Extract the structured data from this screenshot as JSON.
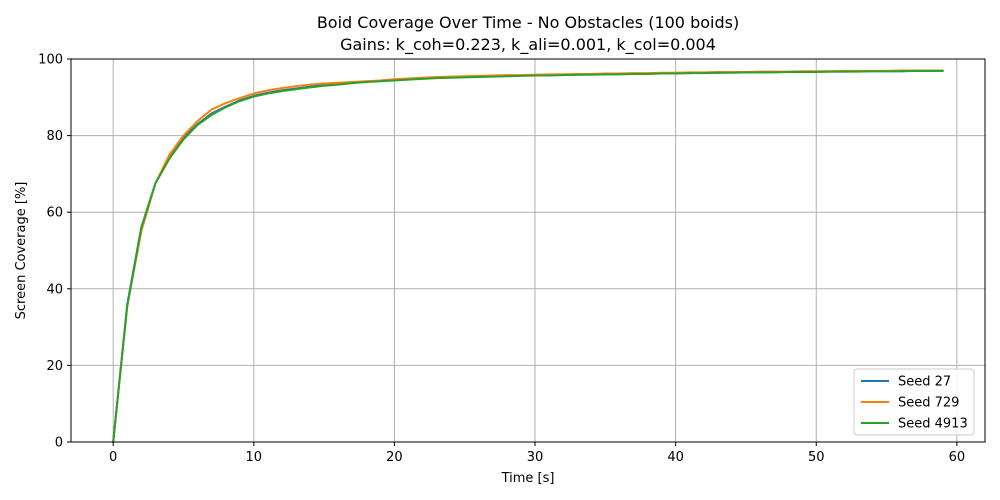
{
  "chart_data": {
    "type": "line",
    "title": "Boid Coverage Over Time - No Obstacles  (100 boids)",
    "subtitle": "Gains: k_coh=0.223, k_ali=0.001, k_col=0.004",
    "xlabel": "Time [s]",
    "ylabel": "Screen Coverage [%]",
    "xlim": [
      -3,
      62
    ],
    "ylim": [
      0,
      100
    ],
    "xticks": [
      0,
      10,
      20,
      30,
      40,
      50,
      60
    ],
    "yticks": [
      0,
      20,
      40,
      60,
      80,
      100
    ],
    "grid": true,
    "legend_position": "lower-right",
    "x": [
      0,
      1,
      2,
      3,
      4,
      5,
      6,
      7,
      8,
      9,
      10,
      11,
      12,
      13,
      14,
      15,
      16,
      17,
      18,
      19,
      20,
      21,
      22,
      23,
      24,
      25,
      26,
      27,
      28,
      29,
      30,
      31,
      32,
      33,
      34,
      35,
      36,
      37,
      38,
      39,
      40,
      41,
      42,
      43,
      44,
      45,
      46,
      47,
      48,
      49,
      50,
      51,
      52,
      53,
      54,
      55,
      56,
      57,
      58,
      59
    ],
    "series": [
      {
        "name": "Seed 27",
        "color": "#1f77b4",
        "values": [
          0,
          36,
          56,
          67.5,
          74.5,
          79.5,
          83,
          85.8,
          87.6,
          89.2,
          90.4,
          91.2,
          91.8,
          92.3,
          92.8,
          93.2,
          93.5,
          93.8,
          94.1,
          94.3,
          94.6,
          94.8,
          95,
          95.2,
          95.3,
          95.4,
          95.5,
          95.6,
          95.6,
          95.7,
          95.8,
          95.8,
          95.9,
          95.9,
          96,
          96,
          96.1,
          96.1,
          96.2,
          96.2,
          96.3,
          96.3,
          96.4,
          96.4,
          96.5,
          96.5,
          96.5,
          96.6,
          96.6,
          96.6,
          96.7,
          96.7,
          96.7,
          96.8,
          96.8,
          96.8,
          96.8,
          96.9,
          96.9,
          96.9
        ]
      },
      {
        "name": "Seed 729",
        "color": "#ff7f0e",
        "values": [
          0,
          35.5,
          55,
          67.5,
          75,
          80,
          83.8,
          86.8,
          88.5,
          89.8,
          91,
          91.8,
          92.4,
          92.9,
          93.3,
          93.6,
          93.8,
          94,
          94.2,
          94.4,
          94.7,
          94.9,
          95.1,
          95.3,
          95.4,
          95.5,
          95.6,
          95.7,
          95.8,
          95.8,
          95.9,
          96,
          96,
          96.1,
          96.1,
          96.2,
          96.2,
          96.3,
          96.3,
          96.4,
          96.4,
          96.5,
          96.5,
          96.6,
          96.6,
          96.6,
          96.7,
          96.7,
          96.7,
          96.8,
          96.8,
          96.8,
          96.9,
          96.9,
          96.9,
          96.9,
          97,
          97,
          97,
          97
        ]
      },
      {
        "name": "Seed 4913",
        "color": "#2ca02c",
        "values": [
          0,
          35.5,
          56,
          67.5,
          74,
          79,
          82.8,
          85.4,
          87.4,
          89,
          90.2,
          91,
          91.6,
          92.1,
          92.6,
          93,
          93.3,
          93.7,
          94,
          94.2,
          94.4,
          94.6,
          94.8,
          95,
          95.1,
          95.2,
          95.3,
          95.4,
          95.5,
          95.6,
          95.7,
          95.7,
          95.8,
          95.9,
          95.9,
          96,
          96,
          96.1,
          96.1,
          96.2,
          96.2,
          96.3,
          96.3,
          96.4,
          96.4,
          96.5,
          96.5,
          96.5,
          96.6,
          96.6,
          96.6,
          96.7,
          96.7,
          96.7,
          96.8,
          96.8,
          96.8,
          96.9,
          96.9,
          96.9
        ]
      }
    ]
  }
}
